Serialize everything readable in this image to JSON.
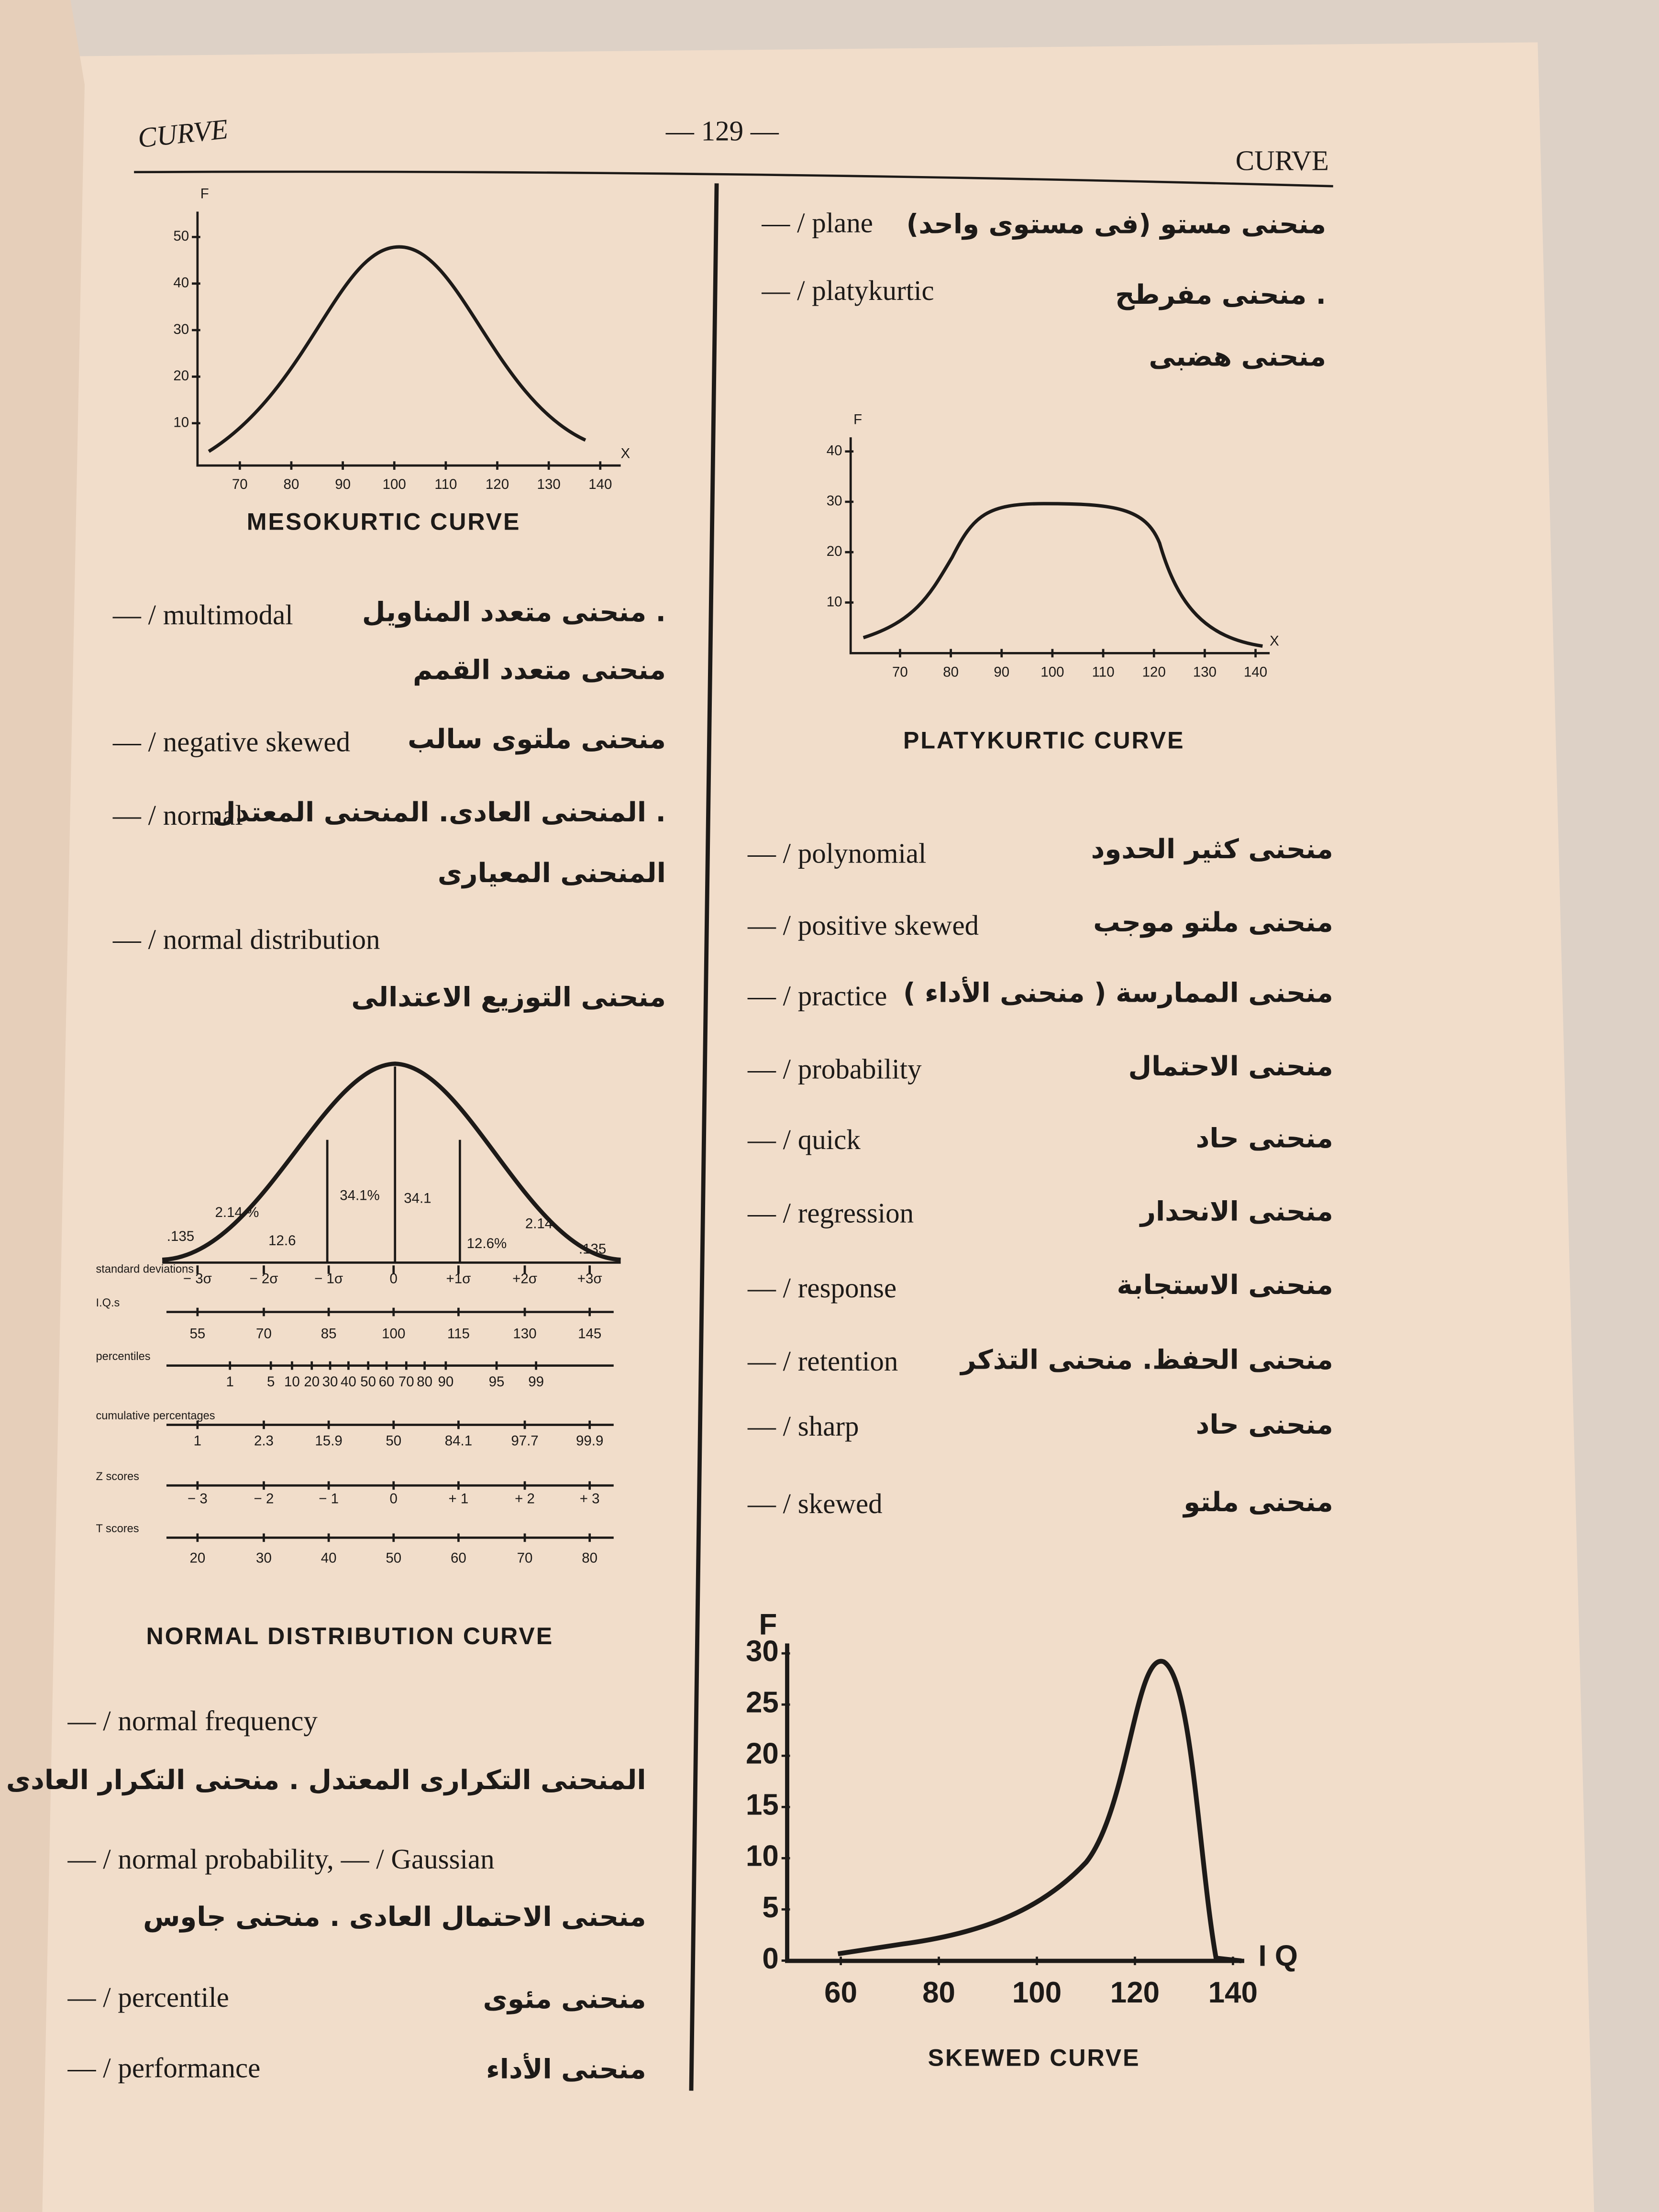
{
  "header": {
    "left": "CURVE",
    "page": "— 129 —",
    "right": "CURVE"
  },
  "left_column": {
    "figure_mesokurtic": {
      "y_axis_label": "F",
      "y_ticks": [
        "50",
        "40",
        "30",
        "20",
        "10"
      ],
      "x_axis_label": "X",
      "x_ticks": [
        "70",
        "80",
        "90",
        "100",
        "110",
        "120",
        "130",
        "140"
      ],
      "caption": "MESOKURTIC CURVE"
    },
    "entries": [
      {
        "term": "— / multimodal",
        "arabic": [
          "منحنى متعدد المناويل .",
          "منحنى متعدد القمم"
        ]
      },
      {
        "term": "— / negative skewed",
        "arabic": [
          "منحنى ملتوى سالب"
        ]
      },
      {
        "term": "— / normal",
        "arabic": [
          "المنحنى العادى. المنحنى المعتدل .",
          "المنحنى المعيارى"
        ]
      },
      {
        "term": "— / normal distribution",
        "arabic": [
          "منحنى التوزيع الاعتدالى"
        ]
      }
    ],
    "figure_normal": {
      "area_labels": [
        ".135",
        "2.14 %",
        "12.6",
        "34.1%",
        "34.1",
        "12.6%",
        "2.14",
        ".135"
      ],
      "rows": [
        {
          "label": "standard deviations",
          "values": [
            "− 3σ",
            "− 2σ",
            "− 1σ",
            "0",
            "+1σ",
            "+2σ",
            "+3σ"
          ]
        },
        {
          "label": "I.Q.s",
          "values": [
            "55",
            "70",
            "85",
            "100",
            "115",
            "130",
            "145"
          ]
        },
        {
          "label": "percentiles",
          "values": [
            "1",
            "5",
            "10",
            "20",
            "30",
            "40",
            "50",
            "60",
            "70",
            "80",
            "90",
            "95",
            "99"
          ]
        },
        {
          "label": "cumulative percentages",
          "values": [
            "1",
            "2.3",
            "15.9",
            "50",
            "84.1",
            "97.7",
            "99.9"
          ]
        },
        {
          "label": "Z scores",
          "values": [
            "− 3",
            "− 2",
            "− 1",
            "0",
            "+ 1",
            "+ 2",
            "+ 3"
          ]
        },
        {
          "label": "T scores",
          "values": [
            "20",
            "30",
            "40",
            "50",
            "60",
            "70",
            "80"
          ]
        }
      ],
      "caption": "NORMAL DISTRIBUTION CURVE"
    },
    "entries_after": [
      {
        "term": "— / normal frequency",
        "arabic": [
          "المنحنى التكرارى المعتدل . منحنى التكرار العادى"
        ]
      },
      {
        "term": "— / normal probability, — / Gaussian",
        "arabic": [
          "منحنى الاحتمال العادى . منحنى جاوس"
        ]
      },
      {
        "term": "— / percentile",
        "arabic": [
          "منحنى مئوى"
        ]
      },
      {
        "term": "— / performance",
        "arabic": [
          "منحنى الأداء"
        ]
      }
    ]
  },
  "right_column": {
    "entries": [
      {
        "term": "— / plane",
        "arabic": [
          "منحنى مستو (فى مستوى واحد)"
        ]
      },
      {
        "term": "— / platykurtic",
        "arabic": [
          "منحنى مفرطح .",
          "منحنى هضبى"
        ]
      }
    ],
    "figure_platykurtic": {
      "y_axis_label": "F",
      "y_ticks": [
        "40",
        "30",
        "20",
        "10"
      ],
      "x_axis_label": "X",
      "x_ticks": [
        "70",
        "80",
        "90",
        "100",
        "110",
        "120",
        "130",
        "140"
      ],
      "caption": "PLATYKURTIC CURVE"
    },
    "entries_after": [
      {
        "term": "— / polynomial",
        "arabic": [
          "منحنى كثير الحدود"
        ]
      },
      {
        "term": "— / positive skewed",
        "arabic": [
          "منحنى ملتو موجب"
        ]
      },
      {
        "term": "— / practice",
        "arabic": [
          "منحنى الممارسة ( منحنى الأداء )"
        ]
      },
      {
        "term": "— / probability",
        "arabic": [
          "منحنى الاحتمال"
        ]
      },
      {
        "term": "— / quick",
        "arabic": [
          "منحنى حاد"
        ]
      },
      {
        "term": "— / regression",
        "arabic": [
          "منحنى الانحدار"
        ]
      },
      {
        "term": "— / response",
        "arabic": [
          "منحنى الاستجابة"
        ]
      },
      {
        "term": "— / retention",
        "arabic": [
          "منحنى الحفظ. منحنى التذكر"
        ]
      },
      {
        "term": "— / sharp",
        "arabic": [
          "منحنى حاد"
        ]
      },
      {
        "term": "— / skewed",
        "arabic": [
          "منحنى ملتو"
        ]
      }
    ],
    "figure_skewed": {
      "y_axis_label": "F",
      "y_ticks": [
        "30",
        "25",
        "20",
        "15",
        "10",
        "5",
        "0"
      ],
      "x_axis_label": "I Q",
      "x_ticks": [
        "60",
        "80",
        "100",
        "120",
        "140"
      ],
      "caption": "SKEWED CURVE"
    }
  }
}
